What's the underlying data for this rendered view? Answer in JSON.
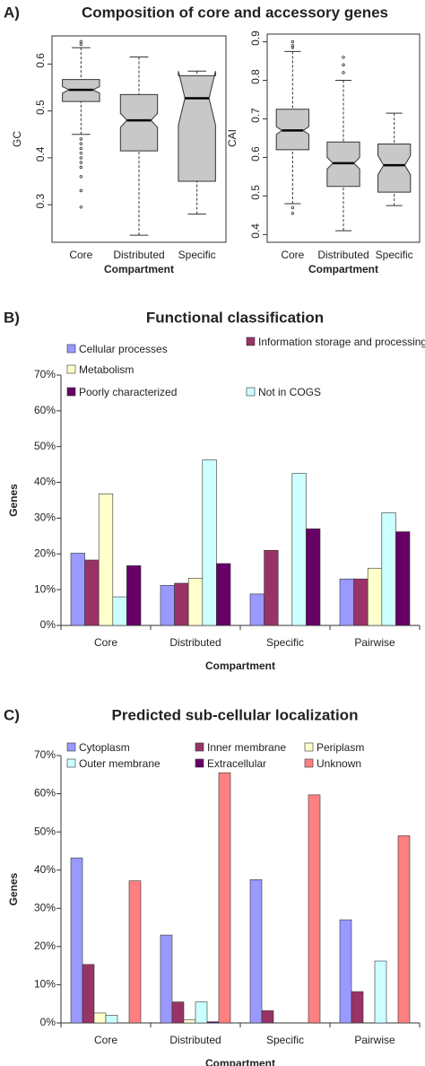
{
  "chart_data": [
    {
      "type": "box",
      "panel_label": "A)",
      "title": "Composition of core and accessory genes",
      "ylabel": "GC",
      "xlabel": "Compartment",
      "categories": [
        "Core",
        "Distributed",
        "Specific"
      ],
      "ylim": [
        0.22,
        0.66
      ],
      "yticks": [
        0.3,
        0.4,
        0.5,
        0.6
      ],
      "color": "#c8c8c8",
      "boxes": [
        {
          "whisker_low": 0.45,
          "q1": 0.52,
          "notch_low": 0.538,
          "median": 0.545,
          "notch_high": 0.552,
          "q3": 0.567,
          "whisker_high": 0.635,
          "outliers": [
            0.648,
            0.642,
            0.44,
            0.43,
            0.42,
            0.41,
            0.4,
            0.39,
            0.38,
            0.36,
            0.33,
            0.295
          ]
        },
        {
          "whisker_low": 0.235,
          "q1": 0.415,
          "notch_low": 0.465,
          "median": 0.48,
          "notch_high": 0.495,
          "q3": 0.535,
          "whisker_high": 0.615,
          "outliers": []
        },
        {
          "whisker_low": 0.28,
          "q1": 0.35,
          "notch_low": 0.47,
          "median": 0.527,
          "notch_high": 0.585,
          "q3": 0.575,
          "whisker_high": 0.585,
          "outliers": []
        }
      ]
    },
    {
      "type": "box",
      "ylabel": "CAI",
      "xlabel": "Compartment",
      "categories": [
        "Core",
        "Distributed",
        "Specific"
      ],
      "ylim": [
        0.38,
        0.92
      ],
      "yticks": [
        0.4,
        0.5,
        0.6,
        0.7,
        0.8,
        0.9
      ],
      "color": "#c8c8c8",
      "boxes": [
        {
          "whisker_low": 0.48,
          "q1": 0.62,
          "notch_low": 0.66,
          "median": 0.67,
          "notch_high": 0.68,
          "q3": 0.725,
          "whisker_high": 0.875,
          "outliers": [
            0.9,
            0.89,
            0.885,
            0.47,
            0.455
          ]
        },
        {
          "whisker_low": 0.41,
          "q1": 0.525,
          "notch_low": 0.57,
          "median": 0.585,
          "notch_high": 0.6,
          "q3": 0.64,
          "whisker_high": 0.8,
          "outliers": [
            0.86,
            0.84,
            0.82
          ]
        },
        {
          "whisker_low": 0.475,
          "q1": 0.51,
          "notch_low": 0.555,
          "median": 0.58,
          "notch_high": 0.605,
          "q3": 0.635,
          "whisker_high": 0.715,
          "outliers": []
        }
      ]
    },
    {
      "type": "bar",
      "panel_label": "B)",
      "title": "Functional classification",
      "ylabel": "Genes",
      "xlabel": "Compartment",
      "categories": [
        "Core",
        "Distributed",
        "Specific",
        "Pairwise"
      ],
      "ylim": [
        0,
        70
      ],
      "yticks": [
        {
          "value": 0,
          "label": "0%"
        },
        {
          "value": 10,
          "label": "10%"
        },
        {
          "value": 20,
          "label": "20%"
        },
        {
          "value": 30,
          "label": "30%"
        },
        {
          "value": 40,
          "label": "40%"
        },
        {
          "value": 50,
          "label": "50%"
        },
        {
          "value": 60,
          "label": "60%"
        },
        {
          "value": 70,
          "label": "70%"
        }
      ],
      "series": [
        {
          "name": "Cellular processes",
          "color": "#9999ff",
          "values": [
            20.2,
            11.2,
            8.8,
            13
          ]
        },
        {
          "name": "Information storage and processing",
          "color": "#993366",
          "values": [
            18.3,
            11.8,
            21,
            13
          ]
        },
        {
          "name": "Metabolism",
          "color": "#ffffcc",
          "values": [
            36.8,
            13.2,
            0,
            16
          ]
        },
        {
          "name": "Not in COGS",
          "color": "#ccffff",
          "values": [
            8,
            46.3,
            42.5,
            31.5
          ]
        },
        {
          "name": "Poorly characterized",
          "color": "#660066",
          "values": [
            16.7,
            17.3,
            27,
            26.2
          ]
        }
      ]
    },
    {
      "type": "bar",
      "panel_label": "C)",
      "title": "Predicted sub-cellular localization",
      "ylabel": "Genes",
      "xlabel": "Compartment",
      "categories": [
        "Core",
        "Distributed",
        "Specific",
        "Pairwise"
      ],
      "ylim": [
        0,
        70
      ],
      "yticks": [
        {
          "value": 0,
          "label": "0%"
        },
        {
          "value": 10,
          "label": "10%"
        },
        {
          "value": 20,
          "label": "20%"
        },
        {
          "value": 30,
          "label": "30%"
        },
        {
          "value": 40,
          "label": "40%"
        },
        {
          "value": 50,
          "label": "50%"
        },
        {
          "value": 60,
          "label": "60%"
        },
        {
          "value": 70,
          "label": "70%"
        }
      ],
      "series": [
        {
          "name": "Cytoplasm",
          "color": "#9999ff",
          "values": [
            43.2,
            23,
            37.5,
            27
          ]
        },
        {
          "name": "Inner membrane",
          "color": "#993366",
          "values": [
            15.3,
            5.5,
            3.2,
            8.2
          ]
        },
        {
          "name": "Periplasm",
          "color": "#ffffcc",
          "values": [
            2.6,
            0.8,
            0,
            0
          ]
        },
        {
          "name": "Outer membrane",
          "color": "#ccffff",
          "values": [
            2,
            5.5,
            0,
            16.2
          ]
        },
        {
          "name": "Extracellular",
          "color": "#660066",
          "values": [
            0,
            0.3,
            0,
            0
          ]
        },
        {
          "name": "Unknown",
          "color": "#ff8080",
          "values": [
            37.2,
            65.5,
            59.7,
            49
          ]
        }
      ]
    }
  ]
}
